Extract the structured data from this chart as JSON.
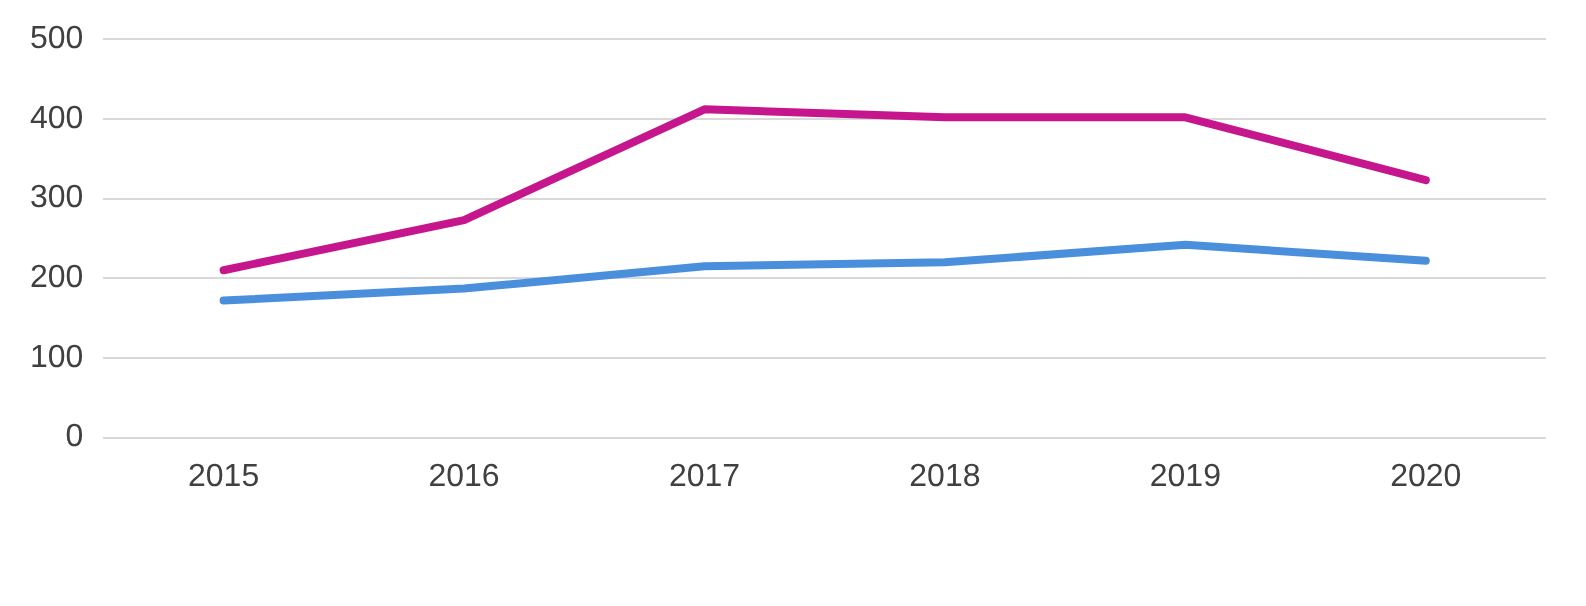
{
  "chart_data": {
    "type": "line",
    "categories": [
      "2015",
      "2016",
      "2017",
      "2018",
      "2019",
      "2020"
    ],
    "series": [
      {
        "color": "#c6168d",
        "values": [
          210,
          273,
          412,
          402,
          402,
          323
        ]
      },
      {
        "color": "#4a8fdb",
        "values": [
          172,
          187,
          215,
          220,
          242,
          222
        ]
      }
    ],
    "ylim": [
      0,
      500
    ],
    "yticks": [
      0,
      100,
      200,
      300,
      400,
      500
    ],
    "grid": "y",
    "marker": "none",
    "line_style": "solid"
  }
}
